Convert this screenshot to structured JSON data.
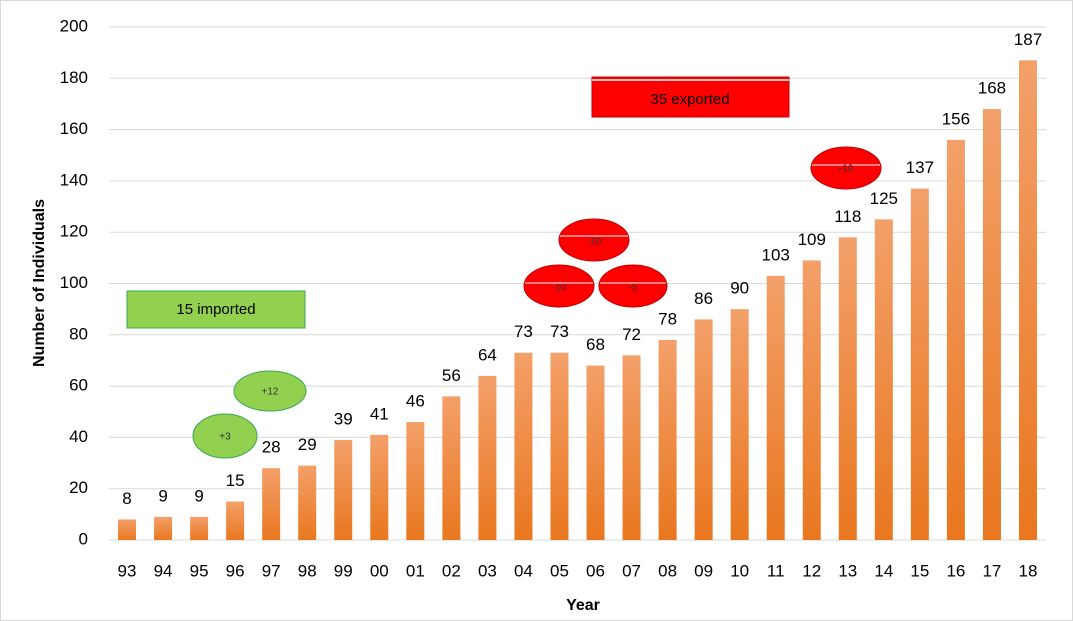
{
  "chart_data": {
    "type": "bar",
    "x_label": "Year",
    "y_label": "Number of Individuals",
    "categories": [
      "93",
      "94",
      "95",
      "96",
      "97",
      "98",
      "99",
      "00",
      "01",
      "02",
      "03",
      "04",
      "05",
      "06",
      "07",
      "08",
      "09",
      "10",
      "11",
      "12",
      "13",
      "14",
      "15",
      "16",
      "17",
      "18"
    ],
    "values": [
      8,
      9,
      9,
      15,
      28,
      29,
      39,
      41,
      46,
      56,
      64,
      73,
      73,
      68,
      72,
      78,
      86,
      90,
      103,
      109,
      118,
      125,
      137,
      156,
      168,
      187
    ],
    "color": "#ec7c30",
    "ylim": [
      0,
      200
    ],
    "yticks": [
      0,
      20,
      40,
      60,
      80,
      100,
      120,
      140,
      160,
      180,
      200
    ],
    "grid": true,
    "annotations": [
      "15 imported",
      "35 exported",
      "+3",
      "+12",
      "-10",
      "-10",
      "-5",
      "-10"
    ]
  }
}
